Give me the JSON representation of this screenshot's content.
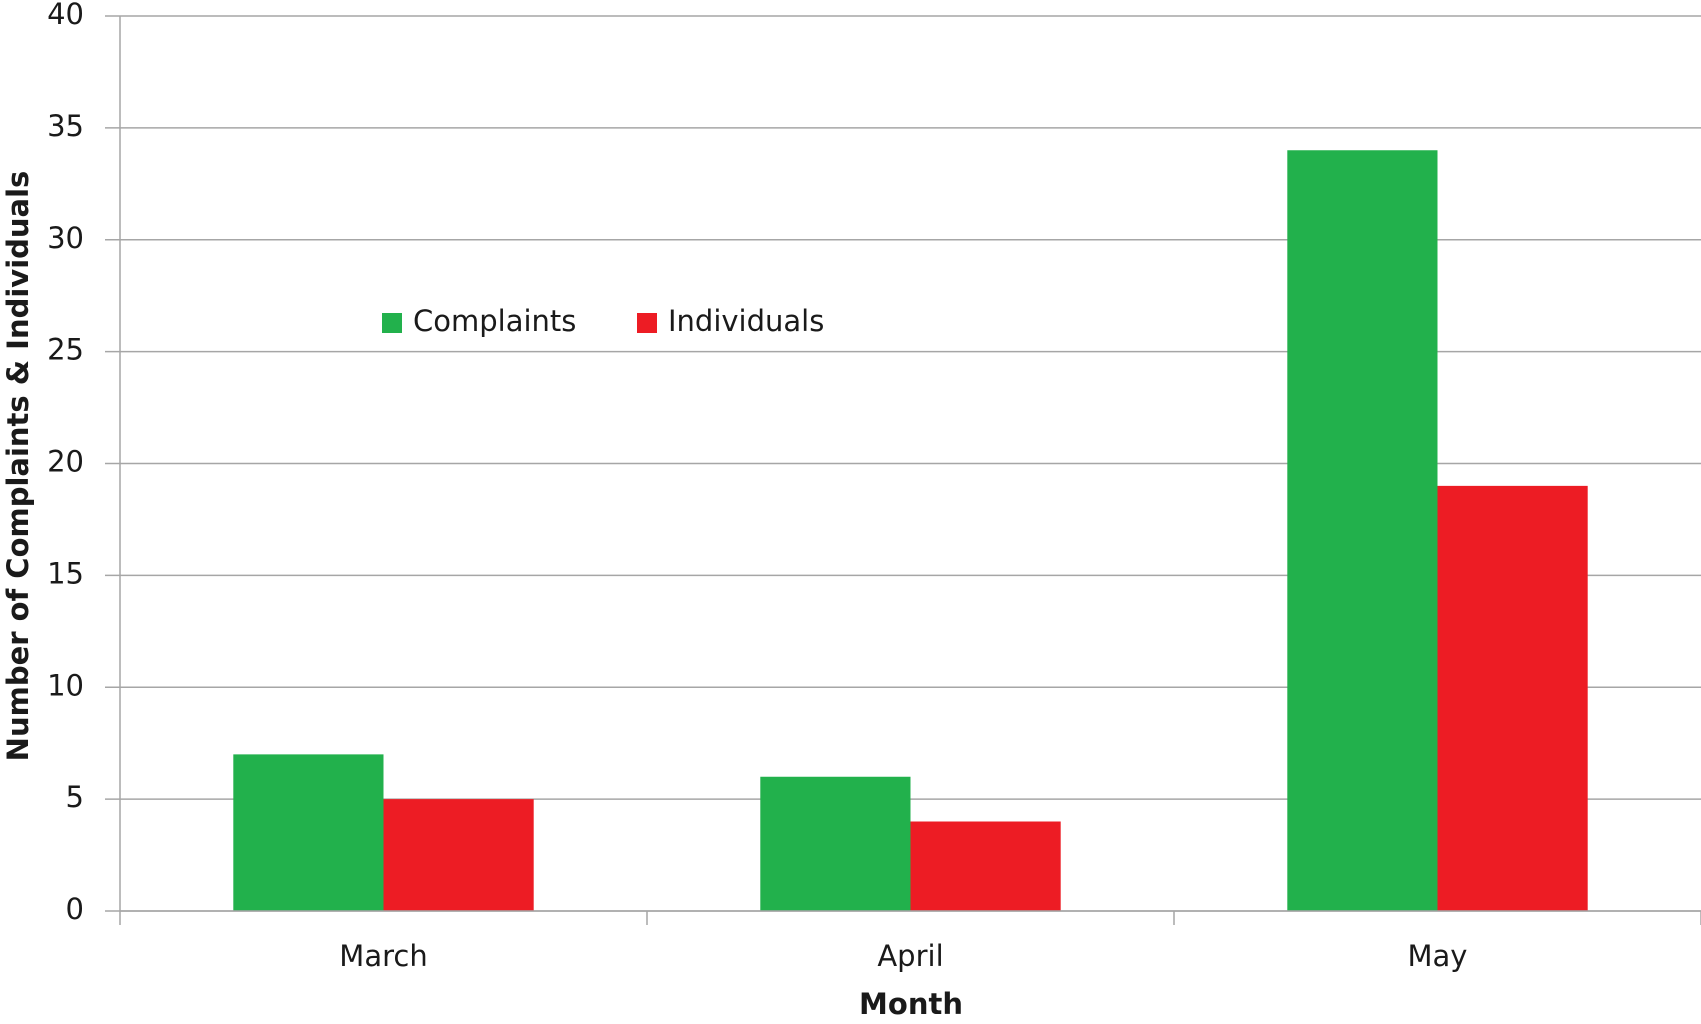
{
  "chart_data": {
    "type": "bar",
    "categories": [
      "March",
      "April",
      "May"
    ],
    "series": [
      {
        "name": "Complaints",
        "color": "#22b14c",
        "values": [
          7,
          6,
          34
        ]
      },
      {
        "name": "Individuals",
        "color": "#ed1c24",
        "values": [
          5,
          4,
          19
        ]
      }
    ],
    "x_label": "Month",
    "y_label": "Number of Complaints & Individuals",
    "ylim": [
      0,
      40
    ],
    "yticks": [
      0,
      5,
      10,
      15,
      20,
      25,
      30,
      35,
      40
    ],
    "grid": true,
    "legend": "top-left"
  }
}
